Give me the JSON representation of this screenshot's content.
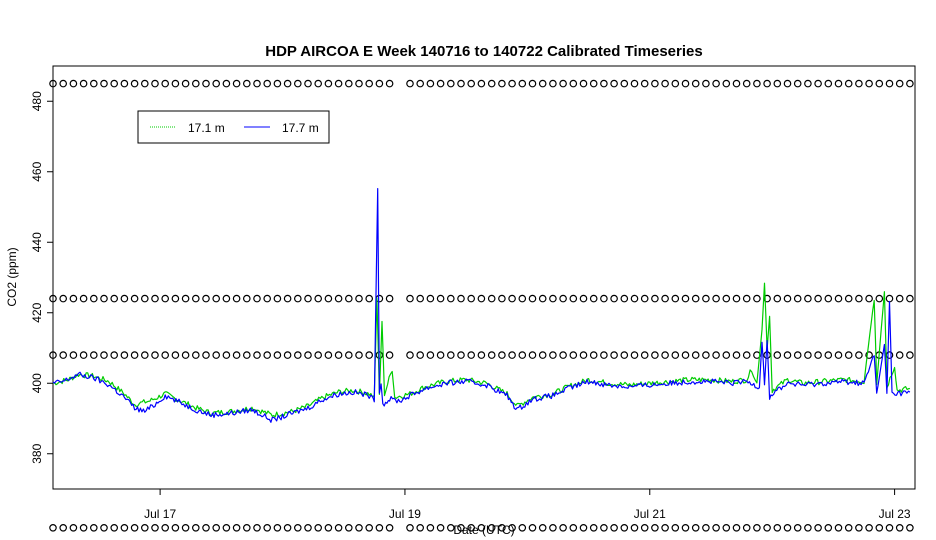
{
  "chart_data": {
    "type": "line",
    "title": "HDP AIRCOA E  Week 140716 to 140722  Calibrated Timeseries",
    "xlabel": "Date (UTC)",
    "ylabel": "CO2 (ppm)",
    "xlim": [
      "2014-07-16 03:00",
      "2014-07-23 04:00"
    ],
    "ylim": [
      370,
      490
    ],
    "x_ticks": [
      {
        "t": "2014-07-17 00:00",
        "label": "Jul 17"
      },
      {
        "t": "2014-07-19 00:00",
        "label": "Jul 19"
      },
      {
        "t": "2014-07-21 00:00",
        "label": "Jul 21"
      },
      {
        "t": "2014-07-23 00:00",
        "label": "Jul 23"
      }
    ],
    "y_ticks": [
      380,
      400,
      420,
      440,
      460,
      480
    ],
    "grid": false,
    "legend": {
      "position": "top-left"
    },
    "colors": {
      "s17_1": "#00cc00",
      "s17_7": "#0000ff",
      "cal": "#000000"
    },
    "series": [
      {
        "name": "17.1 m",
        "style": "line",
        "color": "#00cc00",
        "points": [
          [
            "2014-07-16 03:00",
            400
          ],
          [
            "2014-07-16 06:00",
            401
          ],
          [
            "2014-07-16 08:00",
            402.5
          ],
          [
            "2014-07-16 11:00",
            402
          ],
          [
            "2014-07-16 14:00",
            400.5
          ],
          [
            "2014-07-16 17:00",
            397
          ],
          [
            "2014-07-16 19:00",
            394
          ],
          [
            "2014-07-16 22:00",
            395
          ],
          [
            "2014-07-17 01:00",
            397
          ],
          [
            "2014-07-17 04:00",
            395
          ],
          [
            "2014-07-17 07:00",
            393
          ],
          [
            "2014-07-17 10:00",
            391.5
          ],
          [
            "2014-07-17 14:00",
            392
          ],
          [
            "2014-07-17 18:00",
            393
          ],
          [
            "2014-07-17 22:00",
            391
          ],
          [
            "2014-07-18 02:00",
            392
          ],
          [
            "2014-07-18 05:00",
            393.5
          ],
          [
            "2014-07-18 08:00",
            396
          ],
          [
            "2014-07-18 11:00",
            397.5
          ],
          [
            "2014-07-18 14:00",
            398
          ],
          [
            "2014-07-18 17:00",
            397
          ],
          [
            "2014-07-18 18:00",
            396
          ],
          [
            "2014-07-18 18:30",
            424
          ],
          [
            "2014-07-18 19:00",
            397
          ],
          [
            "2014-07-18 19:30",
            417
          ],
          [
            "2014-07-18 20:00",
            397
          ],
          [
            "2014-07-18 21:30",
            404
          ],
          [
            "2014-07-18 22:00",
            396
          ],
          [
            "2014-07-19 01:00",
            397
          ],
          [
            "2014-07-19 04:00",
            399
          ],
          [
            "2014-07-19 08:00",
            400.5
          ],
          [
            "2014-07-19 12:00",
            401
          ],
          [
            "2014-07-19 16:00",
            400
          ],
          [
            "2014-07-19 20:00",
            397
          ],
          [
            "2014-07-19 22:00",
            393.5
          ],
          [
            "2014-07-20 01:00",
            396
          ],
          [
            "2014-07-20 05:00",
            397
          ],
          [
            "2014-07-20 08:00",
            399
          ],
          [
            "2014-07-20 12:00",
            401
          ],
          [
            "2014-07-20 16:00",
            400
          ],
          [
            "2014-07-20 20:00",
            399.5
          ],
          [
            "2014-07-21 00:00",
            400
          ],
          [
            "2014-07-21 04:00",
            400.5
          ],
          [
            "2014-07-21 08:00",
            401
          ],
          [
            "2014-07-21 12:00",
            401
          ],
          [
            "2014-07-21 16:00",
            400.5
          ],
          [
            "2014-07-21 19:00",
            401
          ],
          [
            "2014-07-21 20:00",
            404
          ],
          [
            "2014-07-21 21:00",
            400
          ],
          [
            "2014-07-21 22:00",
            415
          ],
          [
            "2014-07-21 22:30",
            429
          ],
          [
            "2014-07-21 23:00",
            410
          ],
          [
            "2014-07-21 23:30",
            419
          ],
          [
            "2014-07-22 00:00",
            398
          ],
          [
            "2014-07-22 03:00",
            401
          ],
          [
            "2014-07-22 06:00",
            400
          ],
          [
            "2014-07-22 10:00",
            400.5
          ],
          [
            "2014-07-22 14:00",
            401
          ],
          [
            "2014-07-22 18:00",
            400.5
          ],
          [
            "2014-07-22 20:00",
            424
          ],
          [
            "2014-07-22 20:30",
            400
          ],
          [
            "2014-07-22 22:00",
            426
          ],
          [
            "2014-07-22 22:30",
            399
          ],
          [
            "2014-07-23 00:00",
            405
          ],
          [
            "2014-07-23 00:30",
            398
          ],
          [
            "2014-07-23 03:00",
            398.5
          ]
        ]
      },
      {
        "name": "17.7 m",
        "style": "line",
        "color": "#0000ff",
        "points": [
          [
            "2014-07-16 03:00",
            400
          ],
          [
            "2014-07-16 05:00",
            400.5
          ],
          [
            "2014-07-16 08:00",
            402.5
          ],
          [
            "2014-07-16 11:00",
            401.5
          ],
          [
            "2014-07-16 14:00",
            399.5
          ],
          [
            "2014-07-16 17:00",
            396
          ],
          [
            "2014-07-16 19:00",
            393
          ],
          [
            "2014-07-16 21:00",
            392
          ],
          [
            "2014-07-16 23:00",
            394
          ],
          [
            "2014-07-17 01:00",
            396.5
          ],
          [
            "2014-07-17 04:00",
            394.5
          ],
          [
            "2014-07-17 07:00",
            392.5
          ],
          [
            "2014-07-17 10:00",
            391
          ],
          [
            "2014-07-17 14:00",
            391.5
          ],
          [
            "2014-07-17 18:00",
            392.5
          ],
          [
            "2014-07-17 22:00",
            389.5
          ],
          [
            "2014-07-18 02:00",
            391.5
          ],
          [
            "2014-07-18 05:00",
            393
          ],
          [
            "2014-07-18 08:00",
            395.5
          ],
          [
            "2014-07-18 11:00",
            397
          ],
          [
            "2014-07-18 14:00",
            397.5
          ],
          [
            "2014-07-18 17:00",
            396.5
          ],
          [
            "2014-07-18 18:00",
            395
          ],
          [
            "2014-07-18 18:40",
            456
          ],
          [
            "2014-07-18 19:00",
            398
          ],
          [
            "2014-07-18 19:20",
            400
          ],
          [
            "2014-07-18 19:40",
            394
          ],
          [
            "2014-07-18 21:00",
            395.5
          ],
          [
            "2014-07-18 23:00",
            395
          ],
          [
            "2014-07-19 01:00",
            396.5
          ],
          [
            "2014-07-19 04:00",
            398.5
          ],
          [
            "2014-07-19 08:00",
            400
          ],
          [
            "2014-07-19 12:00",
            400.5
          ],
          [
            "2014-07-19 16:00",
            399.5
          ],
          [
            "2014-07-19 20:00",
            396.5
          ],
          [
            "2014-07-19 22:00",
            392.5
          ],
          [
            "2014-07-20 01:00",
            395.5
          ],
          [
            "2014-07-20 05:00",
            396.5
          ],
          [
            "2014-07-20 08:00",
            398.5
          ],
          [
            "2014-07-20 12:00",
            400.5
          ],
          [
            "2014-07-20 16:00",
            399.5
          ],
          [
            "2014-07-20 20:00",
            399
          ],
          [
            "2014-07-21 00:00",
            399.5
          ],
          [
            "2014-07-21 04:00",
            400
          ],
          [
            "2014-07-21 08:00",
            400.5
          ],
          [
            "2014-07-21 12:00",
            400.5
          ],
          [
            "2014-07-21 16:00",
            400
          ],
          [
            "2014-07-21 19:00",
            400.5
          ],
          [
            "2014-07-21 21:30",
            399
          ],
          [
            "2014-07-21 22:00",
            412
          ],
          [
            "2014-07-21 22:30",
            400
          ],
          [
            "2014-07-21 23:00",
            412
          ],
          [
            "2014-07-21 23:30",
            396
          ],
          [
            "2014-07-22 00:00",
            397
          ],
          [
            "2014-07-22 03:00",
            400
          ],
          [
            "2014-07-22 06:00",
            399.5
          ],
          [
            "2014-07-22 10:00",
            400
          ],
          [
            "2014-07-22 14:00",
            400.5
          ],
          [
            "2014-07-22 18:00",
            400
          ],
          [
            "2014-07-22 20:00",
            408
          ],
          [
            "2014-07-22 20:30",
            397
          ],
          [
            "2014-07-22 22:00",
            411
          ],
          [
            "2014-07-22 22:30",
            397
          ],
          [
            "2014-07-22 23:00",
            423
          ],
          [
            "2014-07-22 23:30",
            397
          ],
          [
            "2014-07-23 03:00",
            397.5
          ]
        ]
      },
      {
        "style": "points",
        "marker": "open-circle",
        "color": "#000000",
        "levels": [
          485,
          424,
          408,
          359
        ],
        "x_start": "2014-07-16 03:00",
        "x_end": "2014-07-23 03:00",
        "interval_hours": 2,
        "gaps": [
          [
            "2014-07-18 22:00",
            "2014-07-19 00:00"
          ]
        ]
      }
    ]
  }
}
